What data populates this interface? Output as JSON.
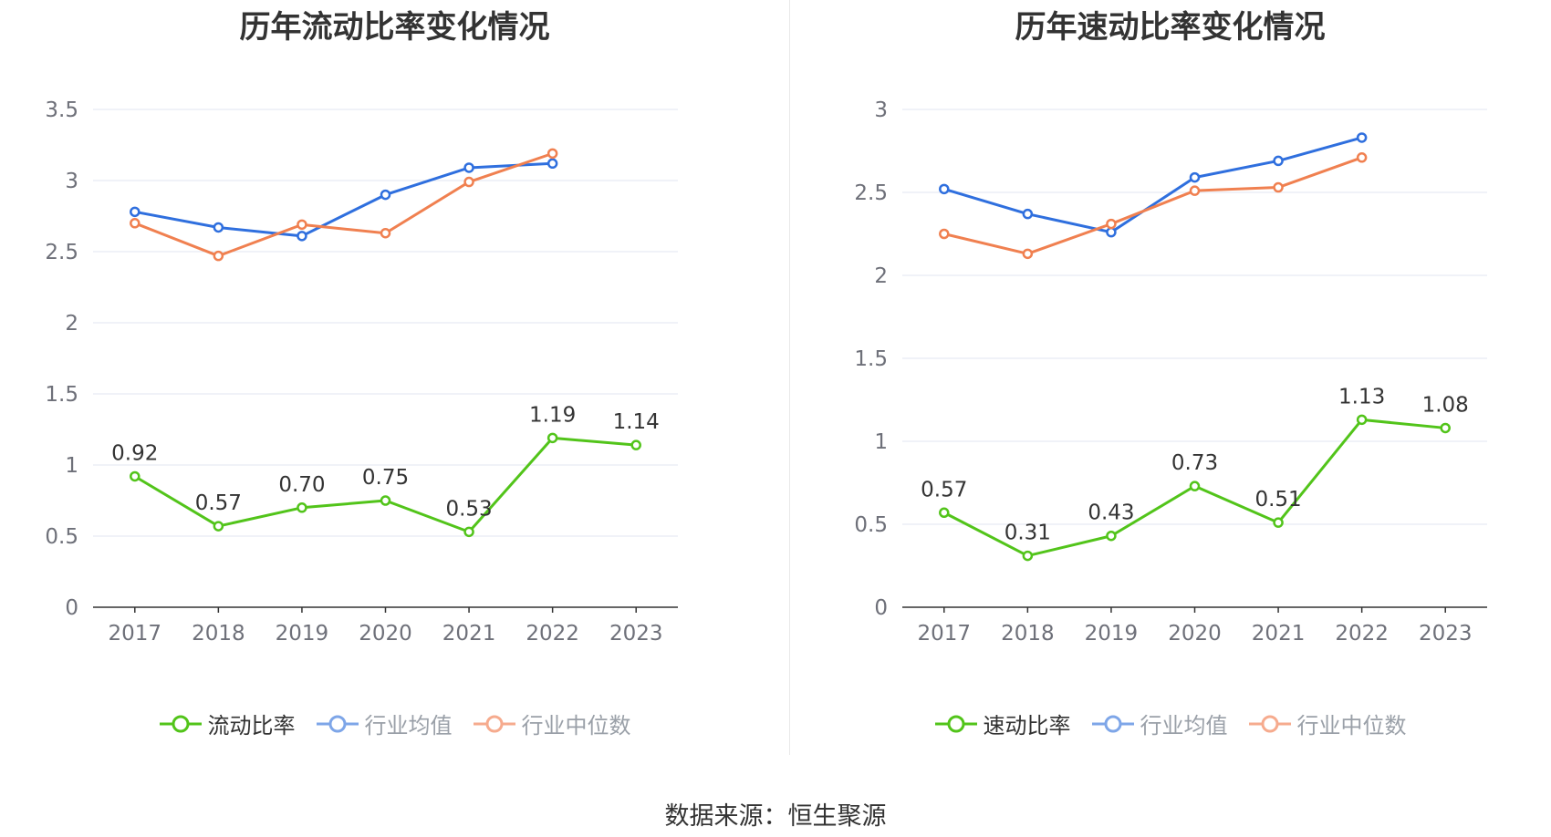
{
  "colors": {
    "main": "#52c41a",
    "avg": "#2f6fde",
    "median": "#f08050",
    "legend_avg": "#7ea6e8",
    "legend_median": "#f6ab8e",
    "legend_inactive_text": "#9aa0a8",
    "legend_active_text": "#333333"
  },
  "chart_data": [
    {
      "type": "line",
      "title": "历年流动比率变化情况",
      "categories": [
        "2017",
        "2018",
        "2019",
        "2020",
        "2021",
        "2022",
        "2023"
      ],
      "ylim": [
        0,
        3.5
      ],
      "yticks": [
        0,
        0.5,
        1,
        1.5,
        2,
        2.5,
        3,
        3.5
      ],
      "ytick_labels": [
        "0",
        "0.5",
        "1",
        "1.5",
        "2",
        "2.5",
        "3",
        "3.5"
      ],
      "grid": true,
      "legend_position": "bottom",
      "series": [
        {
          "name": "流动比率",
          "role": "main",
          "values": [
            0.92,
            0.57,
            0.7,
            0.75,
            0.53,
            1.19,
            1.14
          ],
          "labels": [
            "0.92",
            "0.57",
            "0.70",
            "0.75",
            "0.53",
            "1.19",
            "1.14"
          ]
        },
        {
          "name": "行业均值",
          "role": "avg",
          "values": [
            2.78,
            2.67,
            2.61,
            2.9,
            3.09,
            3.12,
            null
          ]
        },
        {
          "name": "行业中位数",
          "role": "median",
          "values": [
            2.7,
            2.47,
            2.69,
            2.63,
            2.99,
            3.19,
            null
          ]
        }
      ]
    },
    {
      "type": "line",
      "title": "历年速动比率变化情况",
      "categories": [
        "2017",
        "2018",
        "2019",
        "2020",
        "2021",
        "2022",
        "2023"
      ],
      "ylim": [
        0,
        3
      ],
      "yticks": [
        0,
        0.5,
        1,
        1.5,
        2,
        2.5,
        3
      ],
      "ytick_labels": [
        "0",
        "0.5",
        "1",
        "1.5",
        "2",
        "2.5",
        "3"
      ],
      "grid": true,
      "legend_position": "bottom",
      "series": [
        {
          "name": "速动比率",
          "role": "main",
          "values": [
            0.57,
            0.31,
            0.43,
            0.73,
            0.51,
            1.13,
            1.08
          ],
          "labels": [
            "0.57",
            "0.31",
            "0.43",
            "0.73",
            "0.51",
            "1.13",
            "1.08"
          ]
        },
        {
          "name": "行业均值",
          "role": "avg",
          "values": [
            2.52,
            2.37,
            2.26,
            2.59,
            2.69,
            2.83,
            null
          ]
        },
        {
          "name": "行业中位数",
          "role": "median",
          "values": [
            2.25,
            2.13,
            2.31,
            2.51,
            2.53,
            2.71,
            null
          ]
        }
      ]
    }
  ],
  "footer": {
    "source": "数据来源：恒生聚源"
  }
}
